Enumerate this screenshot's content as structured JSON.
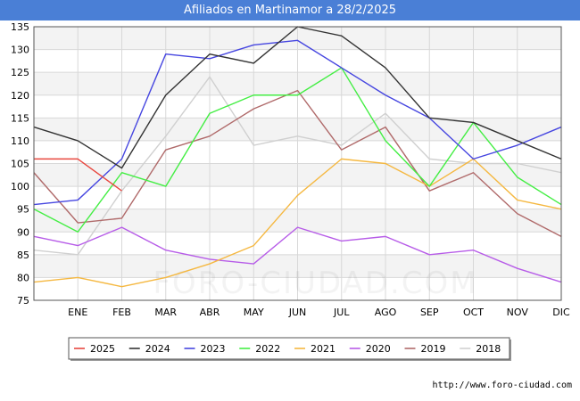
{
  "chart_data": {
    "type": "line",
    "title": "Afiliados en Martinamor a 28/2/2025",
    "categories": [
      "",
      "ENE",
      "FEB",
      "MAR",
      "ABR",
      "MAY",
      "JUN",
      "JUL",
      "AGO",
      "SEP",
      "OCT",
      "NOV",
      "DIC"
    ],
    "ylim": [
      75,
      135
    ],
    "yticks": [
      75,
      80,
      85,
      90,
      95,
      100,
      105,
      110,
      115,
      120,
      125,
      130,
      135
    ],
    "grid": true,
    "legend_position": "bottom",
    "series": [
      {
        "name": "2025",
        "color": "#e8473f",
        "values": [
          106,
          106,
          99,
          null,
          null,
          null,
          null,
          null,
          null,
          null,
          null,
          null,
          null
        ]
      },
      {
        "name": "2024",
        "color": "#333333",
        "values": [
          113,
          110,
          104,
          120,
          129,
          127,
          135,
          133,
          126,
          115,
          114,
          110,
          106
        ]
      },
      {
        "name": "2023",
        "color": "#4646e0",
        "values": [
          96,
          97,
          106,
          129,
          128,
          131,
          132,
          126,
          120,
          115,
          106,
          109,
          113
        ]
      },
      {
        "name": "2022",
        "color": "#44ee44",
        "values": [
          95,
          90,
          103,
          100,
          116,
          120,
          120,
          126,
          110,
          100,
          114,
          102,
          96
        ]
      },
      {
        "name": "2021",
        "color": "#f5b841",
        "values": [
          79,
          80,
          78,
          80,
          83,
          87,
          98,
          106,
          105,
          100,
          106,
          97,
          95
        ]
      },
      {
        "name": "2020",
        "color": "#b75ce8",
        "values": [
          89,
          87,
          91,
          86,
          84,
          83,
          91,
          88,
          89,
          85,
          86,
          82,
          79
        ]
      },
      {
        "name": "2019",
        "color": "#b06a6a",
        "values": [
          103,
          92,
          93,
          108,
          111,
          117,
          121,
          108,
          113,
          99,
          103,
          94,
          89
        ]
      },
      {
        "name": "2018",
        "color": "#d0d0d0",
        "values": [
          86,
          85,
          99,
          111,
          124,
          109,
          111,
          109,
          116,
          106,
          105,
          105,
          103
        ]
      }
    ]
  },
  "watermark": "FORO-CIUDAD.COM",
  "footer_url": "http://www.foro-ciudad.com"
}
